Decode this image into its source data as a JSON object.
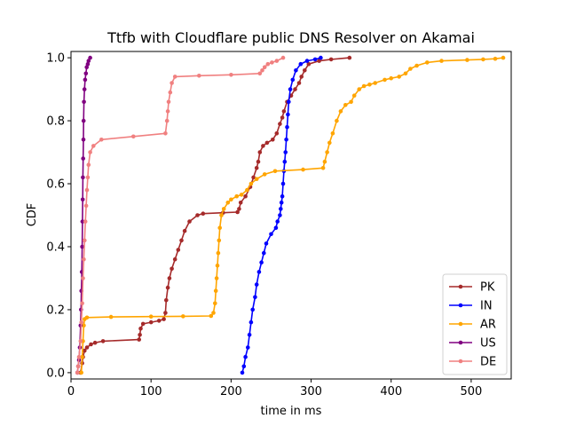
{
  "chart_data": {
    "type": "line",
    "title": "Ttfb with Cloudflare public DNS Resolver on Akamai",
    "xlabel": "time in ms",
    "ylabel": "CDF",
    "xlim": [
      0,
      550
    ],
    "ylim": [
      -0.02,
      1.02
    ],
    "xticks": [
      "0",
      "100",
      "200",
      "300",
      "400",
      "500"
    ],
    "yticks": [
      "0.0",
      "0.2",
      "0.4",
      "0.6",
      "0.8",
      "1.0"
    ],
    "grid": false,
    "legend_position": "bottom-right",
    "series": [
      {
        "name": "PK",
        "color": "#a52a2a",
        "points": [
          [
            12,
            0.0
          ],
          [
            14,
            0.03
          ],
          [
            15,
            0.05
          ],
          [
            17,
            0.07
          ],
          [
            20,
            0.08
          ],
          [
            25,
            0.09
          ],
          [
            30,
            0.095
          ],
          [
            40,
            0.1
          ],
          [
            85,
            0.105
          ],
          [
            86,
            0.12
          ],
          [
            87,
            0.14
          ],
          [
            90,
            0.155
          ],
          [
            100,
            0.16
          ],
          [
            110,
            0.165
          ],
          [
            116,
            0.17
          ],
          [
            118,
            0.19
          ],
          [
            119,
            0.23
          ],
          [
            121,
            0.27
          ],
          [
            123,
            0.3
          ],
          [
            126,
            0.33
          ],
          [
            130,
            0.36
          ],
          [
            134,
            0.39
          ],
          [
            138,
            0.42
          ],
          [
            142,
            0.45
          ],
          [
            148,
            0.48
          ],
          [
            158,
            0.5
          ],
          [
            165,
            0.505
          ],
          [
            190,
            0.508
          ],
          [
            208,
            0.51
          ],
          [
            210,
            0.52
          ],
          [
            212,
            0.54
          ],
          [
            218,
            0.56
          ],
          [
            224,
            0.59
          ],
          [
            228,
            0.62
          ],
          [
            232,
            0.65
          ],
          [
            234,
            0.67
          ],
          [
            236,
            0.7
          ],
          [
            240,
            0.72
          ],
          [
            245,
            0.73
          ],
          [
            252,
            0.74
          ],
          [
            257,
            0.76
          ],
          [
            261,
            0.79
          ],
          [
            264,
            0.81
          ],
          [
            266,
            0.83
          ],
          [
            270,
            0.86
          ],
          [
            275,
            0.88
          ],
          [
            280,
            0.9
          ],
          [
            285,
            0.92
          ],
          [
            288,
            0.94
          ],
          [
            292,
            0.96
          ],
          [
            297,
            0.98
          ],
          [
            310,
            0.99
          ],
          [
            325,
            0.995
          ],
          [
            348,
            1.0
          ]
        ]
      },
      {
        "name": "IN",
        "color": "#0000ff",
        "points": [
          [
            214,
            0.0
          ],
          [
            216,
            0.02
          ],
          [
            218,
            0.05
          ],
          [
            221,
            0.08
          ],
          [
            223,
            0.12
          ],
          [
            225,
            0.16
          ],
          [
            227,
            0.2
          ],
          [
            230,
            0.24
          ],
          [
            232,
            0.28
          ],
          [
            235,
            0.32
          ],
          [
            238,
            0.35
          ],
          [
            241,
            0.38
          ],
          [
            244,
            0.41
          ],
          [
            250,
            0.44
          ],
          [
            256,
            0.46
          ],
          [
            258,
            0.48
          ],
          [
            261,
            0.5
          ],
          [
            262,
            0.52
          ],
          [
            263,
            0.54
          ],
          [
            264,
            0.56
          ],
          [
            265,
            0.6
          ],
          [
            266,
            0.64
          ],
          [
            267,
            0.67
          ],
          [
            268,
            0.7
          ],
          [
            269,
            0.74
          ],
          [
            270,
            0.78
          ],
          [
            271,
            0.82
          ],
          [
            272,
            0.86
          ],
          [
            274,
            0.9
          ],
          [
            277,
            0.93
          ],
          [
            281,
            0.96
          ],
          [
            287,
            0.98
          ],
          [
            295,
            0.99
          ],
          [
            305,
            0.995
          ],
          [
            312,
            1.0
          ]
        ]
      },
      {
        "name": "AR",
        "color": "#ffa500",
        "points": [
          [
            13,
            0.0
          ],
          [
            14,
            0.05
          ],
          [
            15,
            0.1
          ],
          [
            16,
            0.15
          ],
          [
            17,
            0.17
          ],
          [
            20,
            0.175
          ],
          [
            50,
            0.177
          ],
          [
            100,
            0.178
          ],
          [
            140,
            0.179
          ],
          [
            175,
            0.18
          ],
          [
            178,
            0.19
          ],
          [
            180,
            0.22
          ],
          [
            181,
            0.26
          ],
          [
            182,
            0.3
          ],
          [
            183,
            0.34
          ],
          [
            184,
            0.38
          ],
          [
            185,
            0.42
          ],
          [
            186,
            0.46
          ],
          [
            188,
            0.5
          ],
          [
            191,
            0.52
          ],
          [
            196,
            0.54
          ],
          [
            200,
            0.55
          ],
          [
            207,
            0.56
          ],
          [
            213,
            0.565
          ],
          [
            220,
            0.58
          ],
          [
            225,
            0.6
          ],
          [
            232,
            0.615
          ],
          [
            242,
            0.63
          ],
          [
            255,
            0.64
          ],
          [
            290,
            0.645
          ],
          [
            315,
            0.65
          ],
          [
            317,
            0.67
          ],
          [
            320,
            0.7
          ],
          [
            323,
            0.73
          ],
          [
            327,
            0.76
          ],
          [
            332,
            0.8
          ],
          [
            337,
            0.83
          ],
          [
            343,
            0.85
          ],
          [
            350,
            0.86
          ],
          [
            354,
            0.88
          ],
          [
            360,
            0.9
          ],
          [
            366,
            0.91
          ],
          [
            373,
            0.915
          ],
          [
            380,
            0.92
          ],
          [
            392,
            0.93
          ],
          [
            400,
            0.935
          ],
          [
            410,
            0.94
          ],
          [
            418,
            0.95
          ],
          [
            424,
            0.965
          ],
          [
            432,
            0.975
          ],
          [
            445,
            0.985
          ],
          [
            463,
            0.99
          ],
          [
            495,
            0.993
          ],
          [
            515,
            0.995
          ],
          [
            530,
            0.997
          ],
          [
            540,
            1.0
          ]
        ]
      },
      {
        "name": "US",
        "color": "#800080",
        "points": [
          [
            8,
            0.0
          ],
          [
            9,
            0.02
          ],
          [
            10,
            0.04
          ],
          [
            11,
            0.08
          ],
          [
            12,
            0.15
          ],
          [
            12.5,
            0.2
          ],
          [
            13,
            0.26
          ],
          [
            13.5,
            0.32
          ],
          [
            14,
            0.4
          ],
          [
            14.3,
            0.48
          ],
          [
            14.6,
            0.55
          ],
          [
            14.9,
            0.62
          ],
          [
            15.2,
            0.68
          ],
          [
            15.5,
            0.74
          ],
          [
            15.8,
            0.8
          ],
          [
            16.2,
            0.86
          ],
          [
            16.8,
            0.9
          ],
          [
            17.6,
            0.93
          ],
          [
            18.6,
            0.95
          ],
          [
            19.6,
            0.97
          ],
          [
            21,
            0.98
          ],
          [
            22,
            0.99
          ],
          [
            24,
            1.0
          ]
        ]
      },
      {
        "name": "DE",
        "color": "#f08080",
        "points": [
          [
            8,
            0.0
          ],
          [
            9,
            0.02
          ],
          [
            10,
            0.05
          ],
          [
            12,
            0.1
          ],
          [
            13,
            0.16
          ],
          [
            14,
            0.22
          ],
          [
            15,
            0.3
          ],
          [
            16,
            0.36
          ],
          [
            17,
            0.42
          ],
          [
            18,
            0.48
          ],
          [
            19,
            0.53
          ],
          [
            20,
            0.58
          ],
          [
            21,
            0.62
          ],
          [
            22,
            0.66
          ],
          [
            24,
            0.7
          ],
          [
            28,
            0.72
          ],
          [
            38,
            0.74
          ],
          [
            78,
            0.75
          ],
          [
            118,
            0.76
          ],
          [
            120,
            0.8
          ],
          [
            121,
            0.83
          ],
          [
            122,
            0.86
          ],
          [
            124,
            0.89
          ],
          [
            126,
            0.92
          ],
          [
            130,
            0.94
          ],
          [
            160,
            0.943
          ],
          [
            200,
            0.946
          ],
          [
            236,
            0.95
          ],
          [
            239,
            0.96
          ],
          [
            242,
            0.97
          ],
          [
            246,
            0.98
          ],
          [
            251,
            0.985
          ],
          [
            257,
            0.99
          ],
          [
            265,
            1.0
          ]
        ]
      }
    ]
  }
}
